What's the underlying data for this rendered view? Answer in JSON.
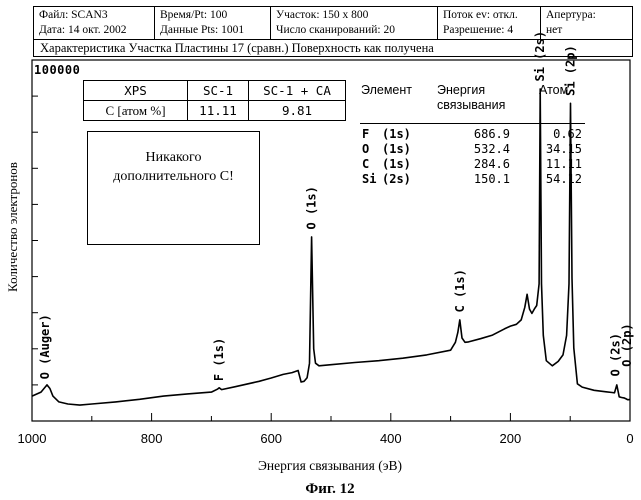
{
  "header": {
    "file": "Файл: SCAN3",
    "date": "Дата: 14 окт. 2002",
    "time_pt": "Время/Pt: 100",
    "data_pts": "Данные Pts: 1001",
    "region": "Участок: 150 x 800",
    "scans": "Число сканирований: 20",
    "flood": "Поток ev: откл.",
    "resolution": "Разрешение: 4",
    "aperture": "Апертура:",
    "aperture_val": "нет",
    "subtitle": "Характеристика Участка Пластины 17 (сравн.) Поверхность как получена"
  },
  "xps_table": {
    "headers": [
      "XPS",
      "SC-1",
      "SC-1 + CA"
    ],
    "row_label": "C [атом %]",
    "row_values": [
      "11.11",
      "9.81"
    ]
  },
  "note_box": {
    "line1": "Никакого",
    "line2": "дополнительного С!"
  },
  "element_table": {
    "col_element": "Элемент",
    "col_energy": "Энергия",
    "col_energy2": "связывания",
    "col_atom": "Атом",
    "rows": [
      {
        "element": "F",
        "orbital": "(1s)",
        "energy": "686.9",
        "atom": "0.62"
      },
      {
        "element": "O",
        "orbital": "(1s)",
        "energy": "532.4",
        "atom": "34.15"
      },
      {
        "element": "C",
        "orbital": "(1s)",
        "energy": "284.6",
        "atom": "11.11"
      },
      {
        "element": "Si",
        "orbital": "(2s)",
        "energy": "150.1",
        "atom": "54.12"
      }
    ]
  },
  "chart_data": {
    "type": "line",
    "title": "",
    "xlabel": "Энергия связывания (эВ)",
    "ylabel": "Количество электронов",
    "xlim": [
      1000,
      0
    ],
    "ylim": [
      0,
      100000
    ],
    "ymax_label": "100000",
    "x_ticks": [
      1000,
      800,
      600,
      400,
      200,
      0
    ],
    "x_tick_labels": [
      "1000",
      "800",
      "600",
      "400",
      "200",
      "0"
    ],
    "grid": false,
    "series": [
      {
        "x": [
          1000,
          985,
          975,
          970,
          965,
          955,
          940,
          920,
          900,
          860,
          820,
          780,
          740,
          700,
          690,
          686.9,
          683,
          660,
          620,
          600,
          580,
          565,
          555,
          550,
          545,
          540,
          536,
          532.4,
          529,
          526,
          520,
          500,
          460,
          420,
          380,
          340,
          300,
          292,
          288,
          284.6,
          281,
          276,
          270,
          250,
          230,
          210,
          200,
          190,
          182,
          176,
          172,
          168,
          164,
          160,
          156,
          152,
          150.1,
          148,
          145,
          140,
          130,
          120,
          112,
          106,
          102,
          99.5,
          97,
          94,
          88,
          80,
          60,
          40,
          30,
          26,
          22,
          18,
          14,
          10,
          6,
          4,
          2,
          0
        ],
        "y": [
          6900,
          8000,
          10000,
          9000,
          6900,
          5300,
          4700,
          4400,
          4700,
          5300,
          6000,
          6900,
          7500,
          8000,
          8800,
          9200,
          8700,
          9500,
          11000,
          11900,
          12900,
          13400,
          14000,
          10800,
          11000,
          12000,
          16000,
          51000,
          20000,
          16000,
          15300,
          15600,
          16200,
          16700,
          17400,
          18300,
          19600,
          21800,
          24500,
          28000,
          23000,
          21800,
          21900,
          22800,
          23800,
          25500,
          26300,
          26800,
          28000,
          31500,
          35100,
          31000,
          29800,
          31000,
          32000,
          38000,
          92000,
          38000,
          23700,
          16700,
          15300,
          16500,
          18300,
          23700,
          38000,
          88000,
          39500,
          20200,
          10300,
          9400,
          8500,
          8100,
          7900,
          7800,
          10000,
          6700,
          6500,
          6400,
          6100,
          5900,
          5900,
          6000
        ]
      }
    ],
    "peak_labels": [
      {
        "text": "O (Auger)",
        "x": 978,
        "y": 11000
      },
      {
        "text": "F (1s)",
        "x": 686.9,
        "y": 10500
      },
      {
        "text": "O (1s)",
        "x": 532.4,
        "y": 52500
      },
      {
        "text": "C (1s)",
        "x": 284.6,
        "y": 29500
      },
      {
        "text": "Si (2s)",
        "x": 150.1,
        "y": 93500
      },
      {
        "text": "Si (2p)",
        "x": 99.5,
        "y": 89500
      },
      {
        "text": "O (2s)",
        "x": 24,
        "y": 11800
      },
      {
        "text": "O (2p)",
        "x": 5,
        "y": 14500
      }
    ],
    "line_color": "#000000"
  },
  "figure_label": "Фиг. 12"
}
